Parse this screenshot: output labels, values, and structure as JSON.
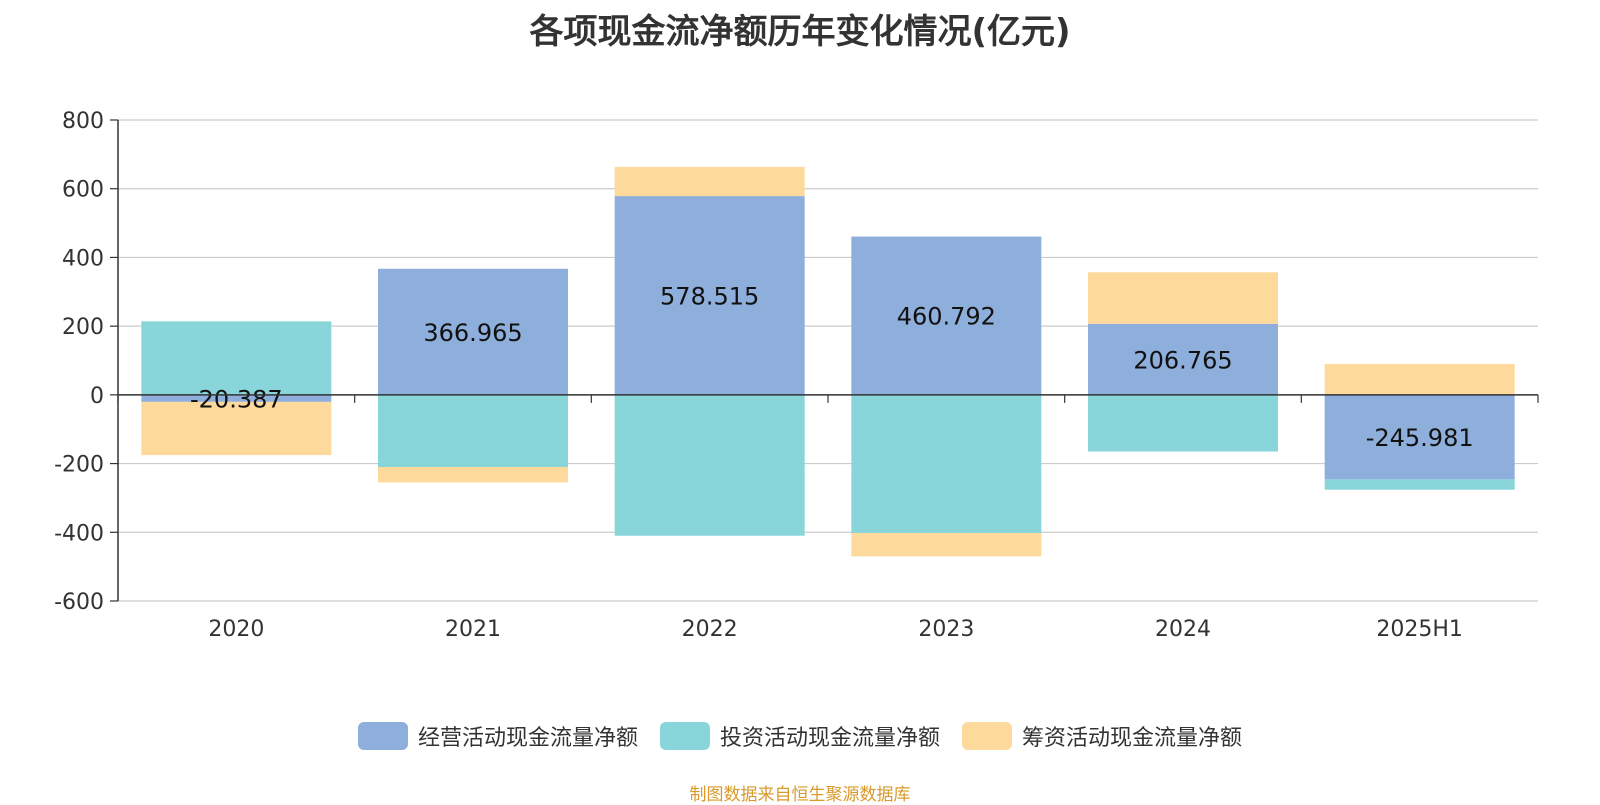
{
  "title": "各项现金流净额历年变化情况(亿元)",
  "source": "制图数据来自恒生聚源数据库",
  "chart_data": {
    "type": "bar",
    "stacked": true,
    "categories": [
      "2020",
      "2021",
      "2022",
      "2023",
      "2024",
      "2025H1"
    ],
    "series": [
      {
        "name": "经营活动现金流量净额",
        "color": "#8eaedb",
        "values": [
          -20.387,
          366.965,
          578.515,
          460.792,
          206.765,
          -245.981
        ]
      },
      {
        "name": "投资活动现金流量净额",
        "color": "#88d5da",
        "values": [
          214,
          -210,
          -410,
          -402,
          -165,
          -30
        ]
      },
      {
        "name": "筹资活动现金流量净额",
        "color": "#fed99c",
        "values": [
          -155,
          -45,
          85,
          -68,
          150,
          90
        ]
      }
    ],
    "data_labels": [
      "-20.387",
      "366.965",
      "578.515",
      "460.792",
      "206.765",
      "-245.981"
    ],
    "y_ticks": [
      "800",
      "600",
      "400",
      "200",
      "0",
      "-200",
      "-400",
      "-600"
    ],
    "ylim": [
      -600,
      800
    ],
    "grid": true,
    "legend_position": "bottom"
  }
}
